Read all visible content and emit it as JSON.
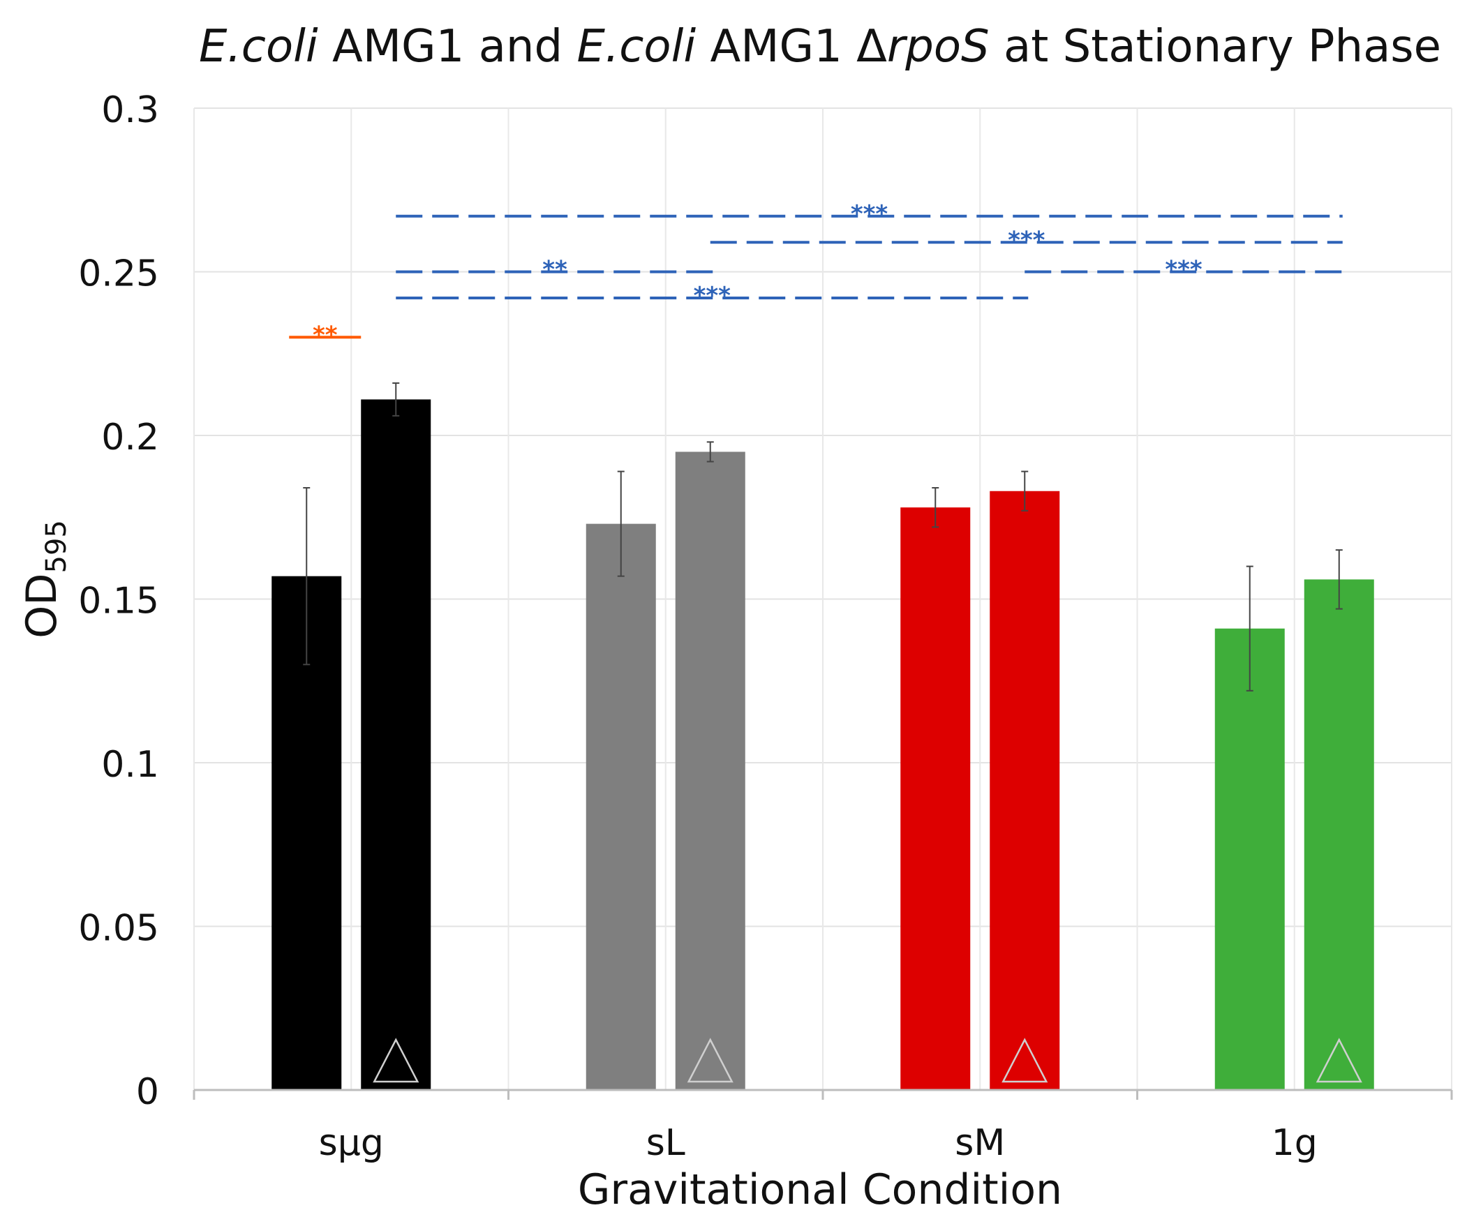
{
  "chart_data": {
    "type": "bar",
    "title_parts": [
      "E.coli",
      " AMG1 and ",
      "E.coli",
      " AMG1 Δ",
      "rpoS",
      " at Stationary Phase"
    ],
    "xlabel": "Gravitational Condition",
    "ylabel": "OD",
    "ylabel_sub": "595",
    "ylim": [
      0,
      0.3
    ],
    "yticks": [
      0,
      0.05,
      0.1,
      0.15,
      0.2,
      0.25,
      0.3
    ],
    "ytick_labels": [
      "0",
      "0.05",
      "0.1",
      "0.15",
      "0.2",
      "0.25",
      "0.3"
    ],
    "categories": [
      "sµg",
      "sL",
      "sM",
      "1g"
    ],
    "series": [
      {
        "name": "E.coli AMG1",
        "values": [
          0.157,
          0.173,
          0.178,
          0.141
        ],
        "errors": [
          0.027,
          0.016,
          0.006,
          0.019
        ]
      },
      {
        "name": "E.coli AMG1 ΔrpoS",
        "values": [
          0.211,
          0.195,
          0.183,
          0.156
        ],
        "errors": [
          0.005,
          0.003,
          0.006,
          0.009
        ],
        "marker": "triangle"
      }
    ],
    "category_colors": [
      "#000000",
      "#7f7f7f",
      "#dd0000",
      "#3fae3a"
    ],
    "significance": [
      {
        "label": "**",
        "color": "#ff5a00",
        "style": "solid",
        "y": 0.23,
        "from": [
          0,
          0
        ],
        "to": [
          0,
          1
        ]
      },
      {
        "label": "***",
        "color": "#2e63b8",
        "style": "dashed",
        "y": 0.267,
        "from": [
          0,
          1
        ],
        "to": [
          3,
          1
        ]
      },
      {
        "label": "***",
        "color": "#2e63b8",
        "style": "dashed",
        "y": 0.259,
        "from": [
          1,
          1
        ],
        "to": [
          3,
          1
        ]
      },
      {
        "label": "**",
        "color": "#2e63b8",
        "style": "dashed",
        "y": 0.25,
        "from": [
          0,
          1
        ],
        "to": [
          1,
          1
        ]
      },
      {
        "label": "***",
        "color": "#2e63b8",
        "style": "dashed",
        "y": 0.25,
        "from": [
          2,
          1
        ],
        "to": [
          3,
          1
        ]
      },
      {
        "label": "***",
        "color": "#2e63b8",
        "style": "dashed",
        "y": 0.242,
        "from": [
          0,
          1
        ],
        "to": [
          2,
          1
        ]
      }
    ]
  }
}
